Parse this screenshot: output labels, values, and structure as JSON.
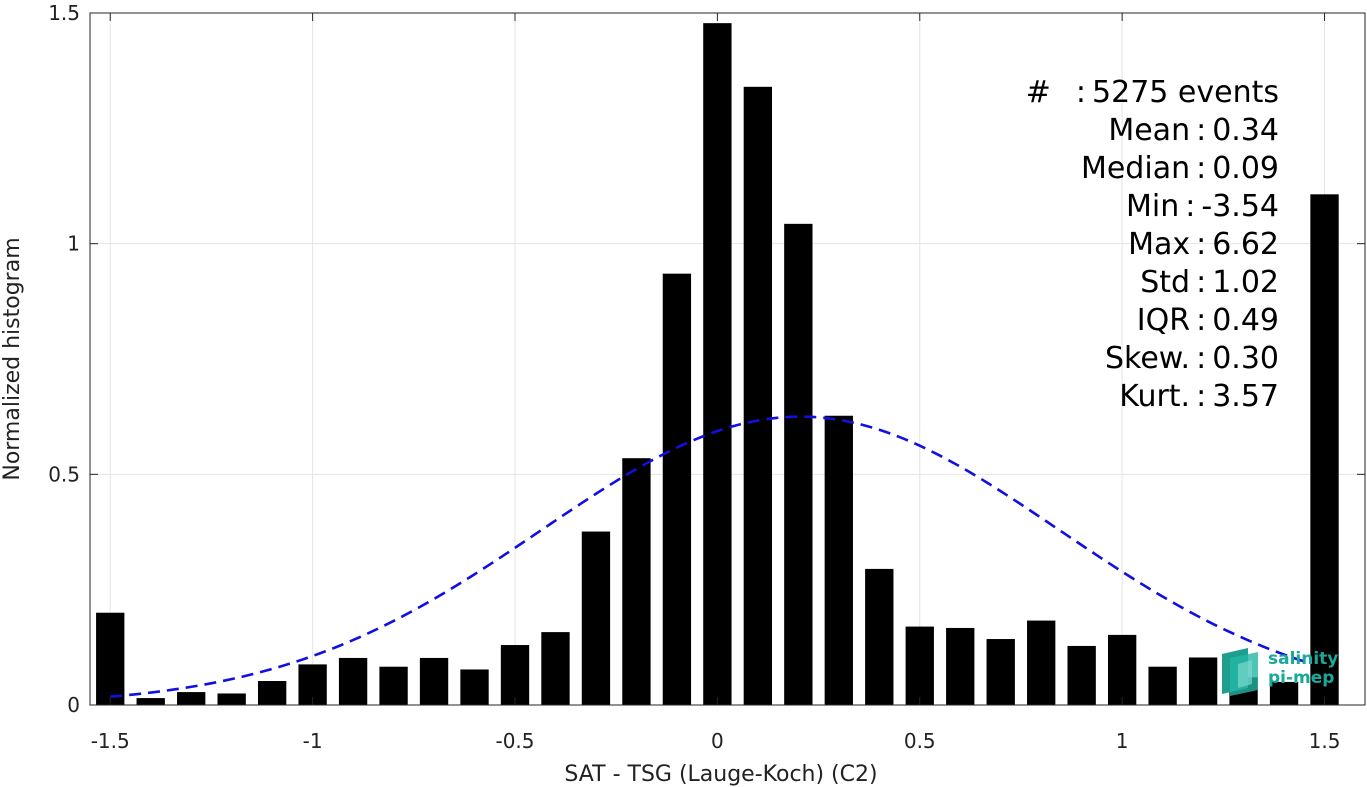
{
  "chart_data": {
    "type": "bar",
    "xlabel": "SAT - TSG (Lauge-Koch) (C2)",
    "ylabel": "Normalized histogram",
    "xlim": [
      -1.55,
      1.6
    ],
    "ylim": [
      0,
      1.5
    ],
    "xticks": [
      -1.5,
      -1,
      -0.5,
      0,
      0.5,
      1,
      1.5
    ],
    "xtick_labels": [
      "-1.5",
      "-1",
      "-0.5",
      "0",
      "0.5",
      "1",
      "1.5"
    ],
    "yticks": [
      0,
      0.5,
      1,
      1.5
    ],
    "ytick_labels": [
      "0",
      "0.5",
      "1",
      "1.5"
    ],
    "grid": true,
    "bar_color": "#000000",
    "x": [
      -1.5,
      -1.4,
      -1.3,
      -1.2,
      -1.1,
      -1.0,
      -0.9,
      -0.8,
      -0.7,
      -0.6,
      -0.5,
      -0.4,
      -0.3,
      -0.2,
      -0.1,
      0.0,
      0.1,
      0.2,
      0.3,
      0.4,
      0.5,
      0.6,
      0.7,
      0.8,
      0.9,
      1.0,
      1.1,
      1.2,
      1.3,
      1.4,
      1.5
    ],
    "values": [
      0.2,
      0.015,
      0.028,
      0.025,
      0.052,
      0.088,
      0.102,
      0.083,
      0.102,
      0.077,
      0.13,
      0.158,
      0.376,
      0.535,
      0.935,
      1.478,
      1.34,
      1.043,
      0.627,
      0.295,
      0.17,
      0.167,
      0.143,
      0.183,
      0.128,
      0.152,
      0.083,
      0.103,
      0.06,
      0.05,
      1.107
    ],
    "fit_curve": {
      "style": "dashed",
      "color": "#1010e0",
      "mean": 0.205,
      "std": 0.64,
      "peak": 0.625,
      "x_range": [
        -1.5,
        1.45
      ]
    },
    "annotation": [
      {
        "label": "#  ",
        "sep": ":",
        "value": "5275 events"
      },
      {
        "label": "Mean",
        "sep": ":",
        "value": "0.34"
      },
      {
        "label": "Median",
        "sep": ":",
        "value": "0.09"
      },
      {
        "label": "Min",
        "sep": ":",
        "value": "-3.54"
      },
      {
        "label": "Max",
        "sep": ":",
        "value": "6.62"
      },
      {
        "label": "Std",
        "sep": ":",
        "value": "1.02"
      },
      {
        "label": "IQR",
        "sep": ":",
        "value": "0.49"
      },
      {
        "label": "Skew.",
        "sep": ":",
        "value": "0.30"
      },
      {
        "label": "Kurt.",
        "sep": ":",
        "value": "3.57"
      }
    ]
  },
  "logo": {
    "line1": "salinity",
    "line2": "pi-mep",
    "color": "#19a89a"
  }
}
